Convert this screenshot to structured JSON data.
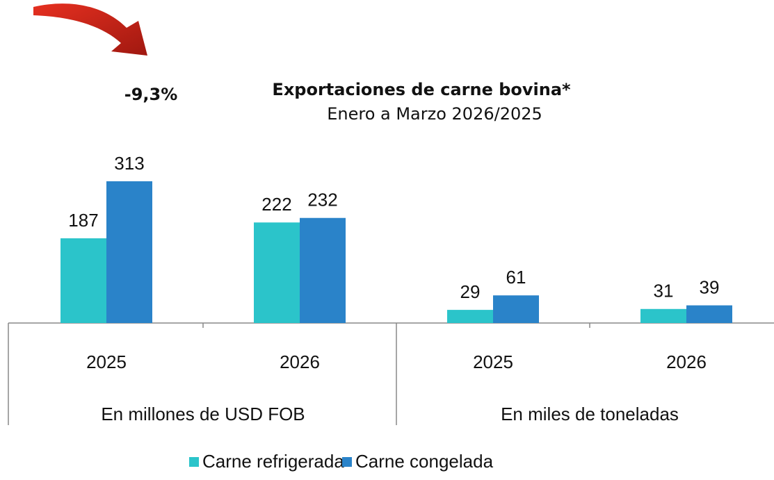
{
  "chart_data": {
    "type": "bar",
    "title": "Exportaciones de carne bovina*",
    "subtitle": "Enero a Marzo 2026/2025",
    "annotation": "-9,3%",
    "groups": [
      {
        "label": "En millones de USD FOB",
        "categories": [
          "2025",
          "2026"
        ]
      },
      {
        "label": "En miles de toneladas",
        "categories": [
          "2025",
          "2026"
        ]
      }
    ],
    "series": [
      {
        "name": "Carne refrigerada",
        "color": "#2bc4ca",
        "values": [
          187,
          222,
          29,
          31
        ]
      },
      {
        "name": "Carne congelada",
        "color": "#2a83c9",
        "values": [
          313,
          232,
          61,
          39
        ]
      }
    ],
    "legend": "bottom"
  }
}
